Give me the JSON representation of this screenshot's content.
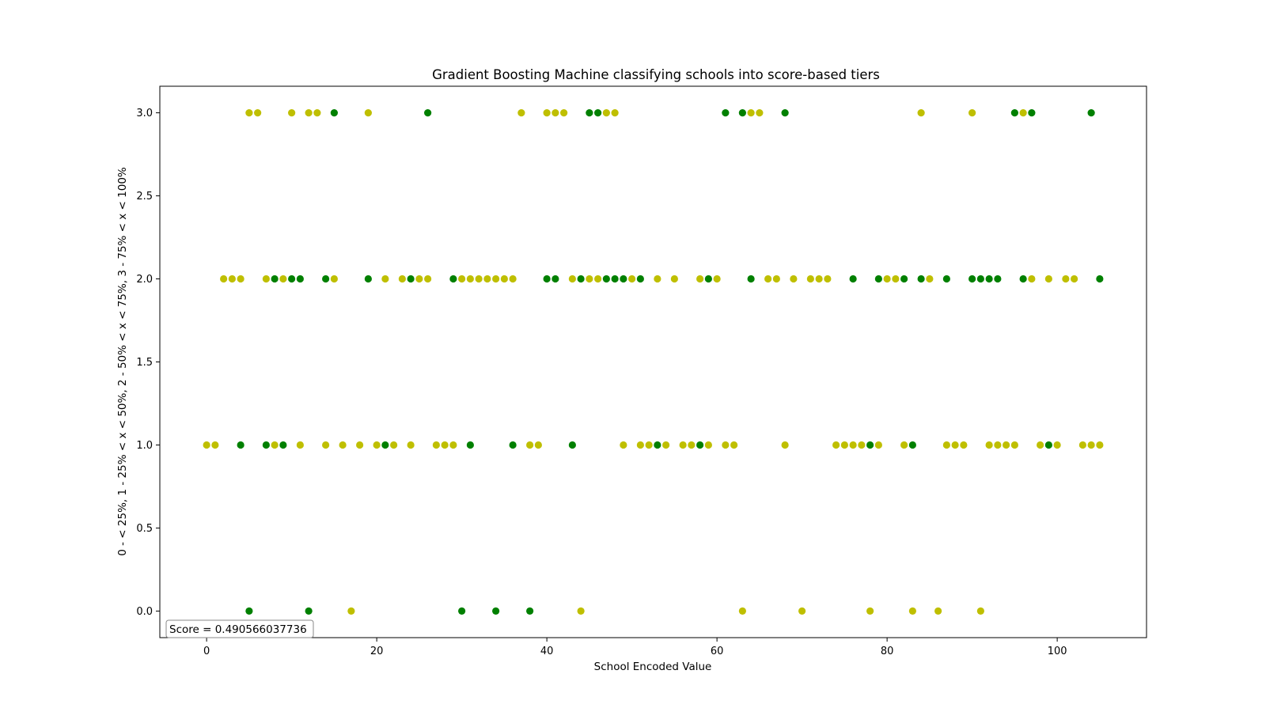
{
  "chart_data": {
    "type": "scatter",
    "title": "Gradient Boosting Machine classifying schools into score-based tiers",
    "xlabel": "School Encoded Value",
    "ylabel": "0 - < 25%, 1 - 25% < x < 50%, 2 - 50% < x < 75%, 3 - 75% < x < 100%",
    "xlim": [
      -5.5,
      110.5
    ],
    "ylim": [
      -0.16,
      3.16
    ],
    "xticks": [
      0,
      20,
      40,
      60,
      80,
      100
    ],
    "yticks": [
      0.0,
      0.5,
      1.0,
      1.5,
      2.0,
      2.5,
      3.0
    ],
    "xtick_labels": [
      "0",
      "20",
      "40",
      "60",
      "80",
      "100"
    ],
    "ytick_labels": [
      "0.0",
      "0.5",
      "1.0",
      "1.5",
      "2.0",
      "2.5",
      "3.0"
    ],
    "grid": false,
    "annotation": "Score = 0.490566037736",
    "series": [
      {
        "color": "#bfbf00",
        "points": [
          [
            5,
            3
          ],
          [
            6,
            3
          ],
          [
            10,
            3
          ],
          [
            12,
            3
          ],
          [
            13,
            3
          ],
          [
            19,
            3
          ],
          [
            37,
            3
          ],
          [
            40,
            3
          ],
          [
            41,
            3
          ],
          [
            42,
            3
          ],
          [
            47,
            3
          ],
          [
            48,
            3
          ],
          [
            64,
            3
          ],
          [
            65,
            3
          ],
          [
            84,
            3
          ],
          [
            90,
            3
          ],
          [
            96,
            3
          ],
          [
            2,
            2
          ],
          [
            3,
            2
          ],
          [
            4,
            2
          ],
          [
            7,
            2
          ],
          [
            9,
            2
          ],
          [
            15,
            2
          ],
          [
            21,
            2
          ],
          [
            23,
            2
          ],
          [
            25,
            2
          ],
          [
            26,
            2
          ],
          [
            30,
            2
          ],
          [
            31,
            2
          ],
          [
            32,
            2
          ],
          [
            33,
            2
          ],
          [
            34,
            2
          ],
          [
            35,
            2
          ],
          [
            36,
            2
          ],
          [
            43,
            2
          ],
          [
            45,
            2
          ],
          [
            46,
            2
          ],
          [
            50,
            2
          ],
          [
            53,
            2
          ],
          [
            55,
            2
          ],
          [
            58,
            2
          ],
          [
            60,
            2
          ],
          [
            66,
            2
          ],
          [
            67,
            2
          ],
          [
            69,
            2
          ],
          [
            71,
            2
          ],
          [
            72,
            2
          ],
          [
            73,
            2
          ],
          [
            80,
            2
          ],
          [
            81,
            2
          ],
          [
            85,
            2
          ],
          [
            97,
            2
          ],
          [
            99,
            2
          ],
          [
            101,
            2
          ],
          [
            102,
            2
          ],
          [
            0,
            1
          ],
          [
            1,
            1
          ],
          [
            8,
            1
          ],
          [
            11,
            1
          ],
          [
            14,
            1
          ],
          [
            16,
            1
          ],
          [
            18,
            1
          ],
          [
            20,
            1
          ],
          [
            22,
            1
          ],
          [
            24,
            1
          ],
          [
            27,
            1
          ],
          [
            28,
            1
          ],
          [
            29,
            1
          ],
          [
            38,
            1
          ],
          [
            39,
            1
          ],
          [
            49,
            1
          ],
          [
            51,
            1
          ],
          [
            52,
            1
          ],
          [
            54,
            1
          ],
          [
            56,
            1
          ],
          [
            57,
            1
          ],
          [
            59,
            1
          ],
          [
            61,
            1
          ],
          [
            62,
            1
          ],
          [
            68,
            1
          ],
          [
            74,
            1
          ],
          [
            75,
            1
          ],
          [
            76,
            1
          ],
          [
            77,
            1
          ],
          [
            79,
            1
          ],
          [
            82,
            1
          ],
          [
            87,
            1
          ],
          [
            88,
            1
          ],
          [
            89,
            1
          ],
          [
            92,
            1
          ],
          [
            93,
            1
          ],
          [
            94,
            1
          ],
          [
            95,
            1
          ],
          [
            98,
            1
          ],
          [
            100,
            1
          ],
          [
            103,
            1
          ],
          [
            104,
            1
          ],
          [
            105,
            1
          ],
          [
            17,
            0
          ],
          [
            44,
            0
          ],
          [
            63,
            0
          ],
          [
            70,
            0
          ],
          [
            78,
            0
          ],
          [
            83,
            0
          ],
          [
            86,
            0
          ],
          [
            91,
            0
          ]
        ]
      },
      {
        "color": "#008000",
        "points": [
          [
            15,
            3
          ],
          [
            26,
            3
          ],
          [
            45,
            3
          ],
          [
            46,
            3
          ],
          [
            61,
            3
          ],
          [
            63,
            3
          ],
          [
            68,
            3
          ],
          [
            95,
            3
          ],
          [
            97,
            3
          ],
          [
            104,
            3
          ],
          [
            8,
            2
          ],
          [
            10,
            2
          ],
          [
            11,
            2
          ],
          [
            14,
            2
          ],
          [
            19,
            2
          ],
          [
            24,
            2
          ],
          [
            29,
            2
          ],
          [
            40,
            2
          ],
          [
            41,
            2
          ],
          [
            44,
            2
          ],
          [
            47,
            2
          ],
          [
            48,
            2
          ],
          [
            49,
            2
          ],
          [
            51,
            2
          ],
          [
            59,
            2
          ],
          [
            64,
            2
          ],
          [
            76,
            2
          ],
          [
            79,
            2
          ],
          [
            82,
            2
          ],
          [
            84,
            2
          ],
          [
            87,
            2
          ],
          [
            90,
            2
          ],
          [
            91,
            2
          ],
          [
            92,
            2
          ],
          [
            93,
            2
          ],
          [
            96,
            2
          ],
          [
            105,
            2
          ],
          [
            4,
            1
          ],
          [
            7,
            1
          ],
          [
            9,
            1
          ],
          [
            21,
            1
          ],
          [
            31,
            1
          ],
          [
            36,
            1
          ],
          [
            43,
            1
          ],
          [
            53,
            1
          ],
          [
            58,
            1
          ],
          [
            78,
            1
          ],
          [
            83,
            1
          ],
          [
            99,
            1
          ],
          [
            5,
            0
          ],
          [
            12,
            0
          ],
          [
            30,
            0
          ],
          [
            34,
            0
          ],
          [
            38,
            0
          ]
        ]
      }
    ]
  }
}
